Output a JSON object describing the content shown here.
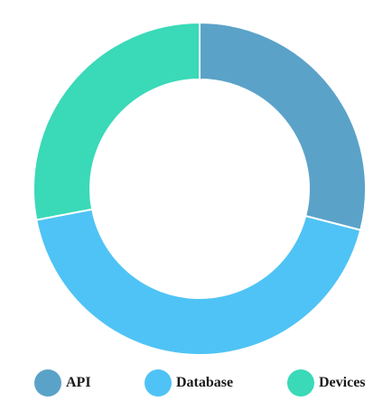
{
  "chart_data": {
    "type": "pie",
    "variant": "donut",
    "categories": [
      "API",
      "Database",
      "Devices"
    ],
    "values": [
      29,
      43,
      28
    ],
    "colors": [
      "#5ba2c9",
      "#4fc3f5",
      "#3ad9b8"
    ],
    "legend_position": "bottom",
    "start_angle_deg": 0,
    "direction": "clockwise",
    "grid": false
  }
}
